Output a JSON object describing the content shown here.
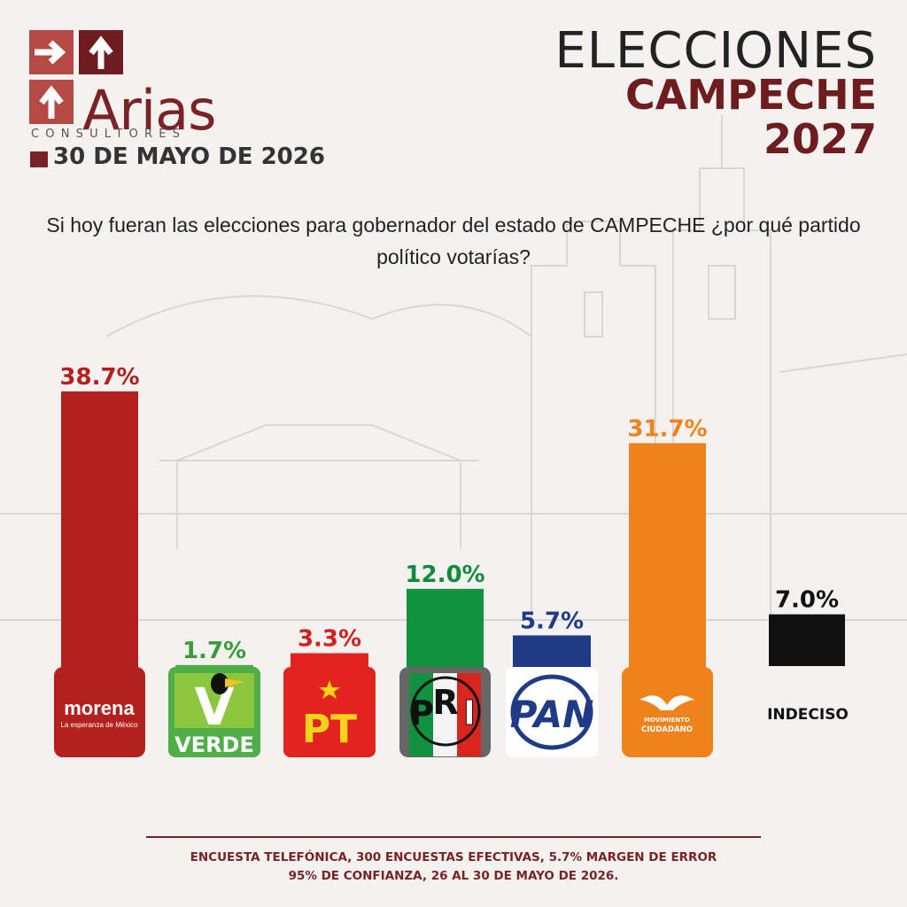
{
  "brand": {
    "name": "Arias",
    "subtitle": "CONSULTORES",
    "date": "30 DE MAYO DE 2026",
    "color": "#7a2224"
  },
  "header": {
    "line1": "ELECCIONES",
    "line2": "CAMPECHE",
    "line3": "2027"
  },
  "question": "Si hoy fueran las elecciones para gobernador del estado de CAMPECHE ¿por qué partido político votarías?",
  "chart_data": {
    "type": "bar",
    "title": "Si hoy fueran las elecciones para gobernador del estado de CAMPECHE ¿por qué partido político votarías?",
    "categories": [
      "morena",
      "VERDE",
      "PT",
      "PRI",
      "PAN",
      "MOVIMIENTO CIUDADANO",
      "INDECISO"
    ],
    "values": [
      38.7,
      1.7,
      3.3,
      12.0,
      5.7,
      31.7,
      7.0
    ],
    "value_labels": [
      "38.7%",
      "1.7%",
      "3.3%",
      "12.0%",
      "5.7%",
      "31.7%",
      "7.0%"
    ],
    "colors": [
      "#b3211e",
      "#4fae48",
      "#e3231f",
      "#11923f",
      "#1f3a86",
      "#f0821c",
      "#111111"
    ],
    "label_colors": [
      "#b3211e",
      "#3b9b3b",
      "#d31f1c",
      "#128a3c",
      "#1f3a86",
      "#f0821c",
      "#111111"
    ],
    "ylabel": "",
    "xlabel": "",
    "grid": false,
    "legend": "none"
  },
  "party_logos": {
    "morena": {
      "name": "morena",
      "tagline": "La esperanza de México"
    },
    "verde": {
      "name": "VERDE",
      "mark": "V"
    },
    "pt": {
      "name": "PT"
    },
    "pri": {
      "letters": [
        "P",
        "R",
        "I"
      ]
    },
    "pan": {
      "name": "PAN"
    },
    "mc": {
      "line1": "MOVIMIENTO",
      "line2": "CIUDADANO"
    },
    "indeciso": {
      "name": "INDECISO"
    }
  },
  "footer": {
    "line1": "ENCUESTA TELEFÓNICA, 300 ENCUESTAS EFECTIVAS, 5.7%  MARGEN DE ERROR",
    "line2": "95% DE CONFIANZA, 26 AL 30 DE MAYO DE 2026."
  }
}
